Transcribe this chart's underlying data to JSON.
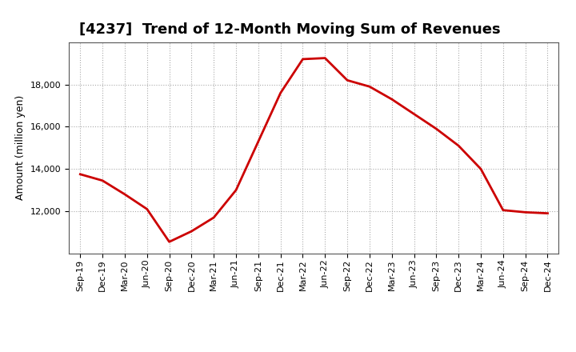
{
  "title": "[4237]  Trend of 12-Month Moving Sum of Revenues",
  "ylabel": "Amount (million yen)",
  "line_color": "#cc0000",
  "line_width": 2.0,
  "background_color": "#ffffff",
  "plot_bg_color": "#ffffff",
  "grid_color": "#aaaaaa",
  "x_labels": [
    "Sep-19",
    "Dec-19",
    "Mar-20",
    "Jun-20",
    "Sep-20",
    "Dec-20",
    "Mar-21",
    "Jun-21",
    "Sep-21",
    "Dec-21",
    "Mar-22",
    "Jun-22",
    "Sep-22",
    "Dec-22",
    "Mar-23",
    "Jun-23",
    "Sep-23",
    "Dec-23",
    "Mar-24",
    "Jun-24",
    "Sep-24",
    "Dec-24"
  ],
  "values": [
    13750,
    13450,
    12800,
    12100,
    10550,
    11050,
    11700,
    13000,
    15300,
    17600,
    19200,
    19250,
    18200,
    17900,
    17300,
    16600,
    15900,
    15100,
    14000,
    12050,
    11950,
    11900
  ],
  "ylim_min": 10000,
  "ylim_max": 20000,
  "ytick_top": 19000,
  "yticks": [
    12000,
    14000,
    16000,
    18000
  ],
  "title_fontsize": 13,
  "tick_fontsize": 8,
  "ylabel_fontsize": 9
}
